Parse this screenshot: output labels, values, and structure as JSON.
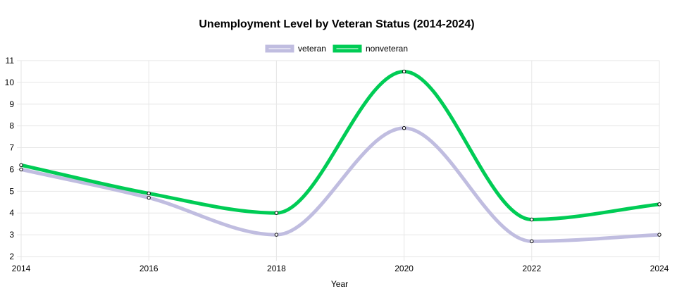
{
  "chart_data": {
    "type": "line",
    "title": "Unemployment Level by Veteran Status (2014-2024)",
    "xlabel": "Year",
    "ylabel": "",
    "x": [
      2014,
      2016,
      2018,
      2020,
      2022,
      2024
    ],
    "xlim": [
      2014,
      2024
    ],
    "ylim": [
      2,
      11
    ],
    "y_ticks": [
      2,
      3,
      4,
      5,
      6,
      7,
      8,
      9,
      10,
      11
    ],
    "grid": true,
    "legend_position": "top",
    "series": [
      {
        "name": "veteran",
        "color": "#c0bde0",
        "values": [
          6.0,
          4.7,
          3.0,
          7.9,
          2.7,
          3.0
        ]
      },
      {
        "name": "nonveteran",
        "color": "#00cc55",
        "values": [
          6.2,
          4.9,
          4.0,
          10.5,
          3.7,
          4.4
        ]
      }
    ]
  }
}
